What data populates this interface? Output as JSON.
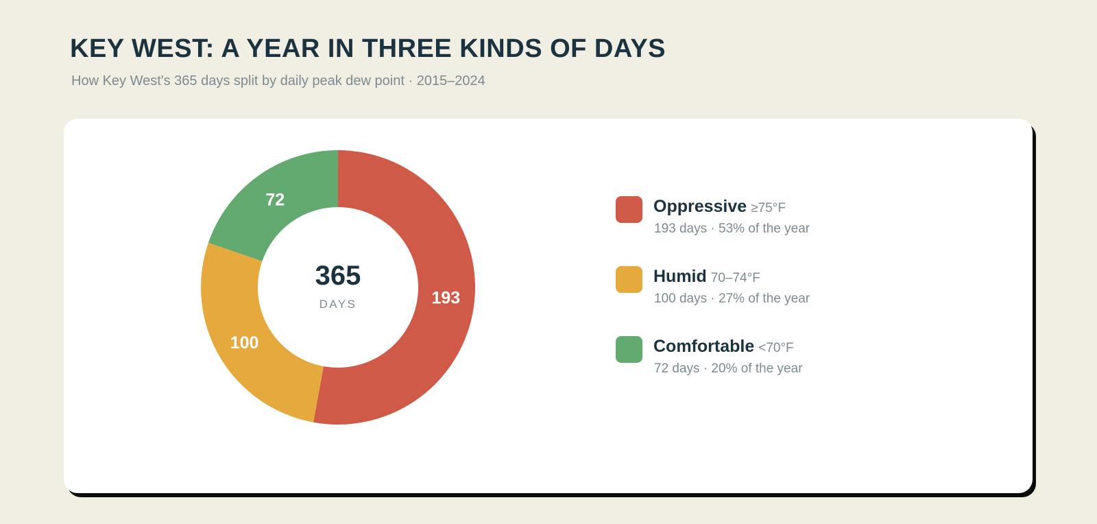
{
  "title": "KEY WEST: A YEAR IN THREE KINDS OF DAYS",
  "subtitle": "How Key West's 365 days split by daily peak dew point · 2015–2024",
  "chart_data": {
    "type": "pie",
    "style": "donut",
    "title": "KEY WEST: A YEAR IN THREE KINDS OF DAYS",
    "subtitle": "How Key West's 365 days split by daily peak dew point · 2015–2024",
    "center_value": "365",
    "center_label": "DAYS",
    "total": 365,
    "slices": [
      {
        "name": "Oppressive",
        "range": "≥75°F",
        "value": 193,
        "label": "193",
        "detail": "193 days · 53% of the year",
        "color": "#CF5A48"
      },
      {
        "name": "Humid",
        "range": "70–74°F",
        "value": 100,
        "label": "100",
        "detail": "100 days · 27% of the year",
        "color": "#E6A93D"
      },
      {
        "name": "Comfortable",
        "range": "<70°F",
        "value": 72,
        "label": "72",
        "detail": "72 days · 20% of the year",
        "color": "#62AA70"
      }
    ],
    "legend_position": "right"
  }
}
